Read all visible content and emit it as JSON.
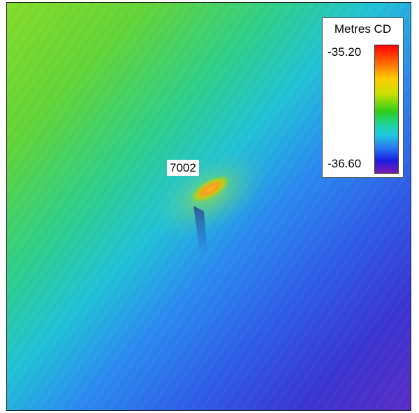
{
  "map": {
    "feature_label": "7002"
  },
  "legend": {
    "title": "Metres CD",
    "max_value": "-35.20",
    "min_value": "-36.60",
    "color_ramp": [
      "#ff0000",
      "#ff6a00",
      "#ffcc00",
      "#c8e000",
      "#2ecc1e",
      "#1fd59a",
      "#1fc8e0",
      "#2a7cf2",
      "#1a1de0",
      "#7a1ab0"
    ]
  }
}
